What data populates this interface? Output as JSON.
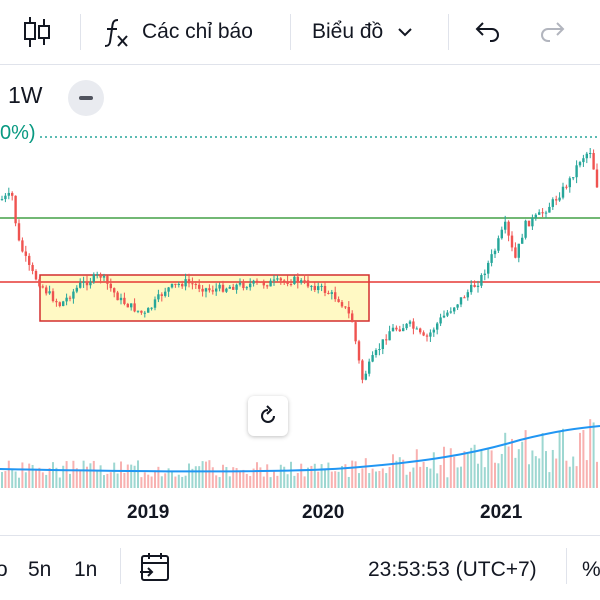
{
  "toolbar": {
    "candles_icon": "candlestick-icon",
    "indicators_label": "Các chỉ báo",
    "chart_label": "Biểu đồ",
    "undo_icon": "undo-icon",
    "redo_icon": "redo-icon"
  },
  "chart": {
    "interval": "1W",
    "percent_label": "0%)",
    "x_axis_labels": [
      "2019",
      "2020",
      "2021"
    ],
    "colors": {
      "up": "#26a69a",
      "down": "#ef5350",
      "resistance_line": "#43a047",
      "support_line": "#e53935",
      "range_box_border": "#d32f2f",
      "range_box_fill": "#fff9c4",
      "volume_ma": "#2196f3",
      "dotted_line": "#26a69a"
    }
  },
  "bottombar": {
    "range_partial": "o",
    "range_5n": "5n",
    "range_1n": "1n",
    "goto_icon": "calendar-goto-icon",
    "time": "23:53:53 (UTC+7)",
    "percent": "%"
  }
}
